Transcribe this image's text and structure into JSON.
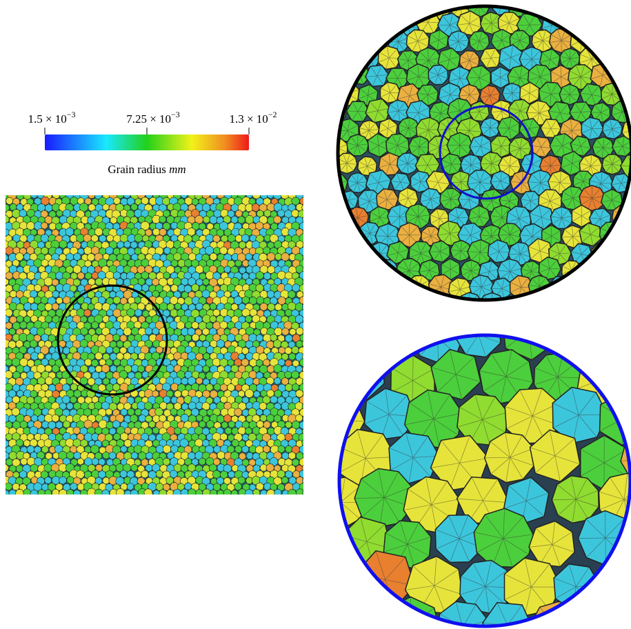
{
  "colorbar": {
    "ticks": [
      {
        "base": "1.5 × 10",
        "exponent": "−3"
      },
      {
        "base": "7.25 × 10",
        "exponent": "−3"
      },
      {
        "base": "1.3 × 10",
        "exponent": "−2"
      }
    ],
    "label": "Grain radius",
    "label_unit": "mm"
  }
}
